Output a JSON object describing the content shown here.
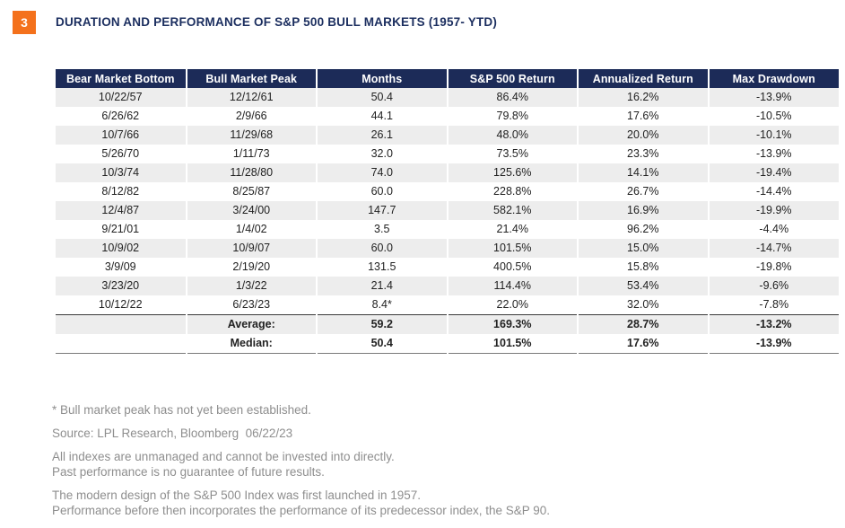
{
  "page": {
    "figure_number": "3"
  },
  "colors": {
    "accent_orange": "#F4711C",
    "header_navy": "#1C2B58",
    "title_navy": "#1B2E5F",
    "row_stripe": "#EDEDED",
    "footnote_gray": "#8E8E8E"
  },
  "chart_data": {
    "type": "table",
    "title": "DURATION AND PERFORMANCE OF S&P 500 BULL MARKETS (1957- YTD)",
    "columns": [
      "Bear Market Bottom",
      "Bull Market Peak",
      "Months",
      "S&P 500 Return",
      "Annualized Return",
      "Max Drawdown"
    ],
    "rows": [
      [
        "10/22/57",
        "12/12/61",
        "50.4",
        "86.4%",
        "16.2%",
        "-13.9%"
      ],
      [
        "6/26/62",
        "2/9/66",
        "44.1",
        "79.8%",
        "17.6%",
        "-10.5%"
      ],
      [
        "10/7/66",
        "11/29/68",
        "26.1",
        "48.0%",
        "20.0%",
        "-10.1%"
      ],
      [
        "5/26/70",
        "1/11/73",
        "32.0",
        "73.5%",
        "23.3%",
        "-13.9%"
      ],
      [
        "10/3/74",
        "11/28/80",
        "74.0",
        "125.6%",
        "14.1%",
        "-19.4%"
      ],
      [
        "8/12/82",
        "8/25/87",
        "60.0",
        "228.8%",
        "26.7%",
        "-14.4%"
      ],
      [
        "12/4/87",
        "3/24/00",
        "147.7",
        "582.1%",
        "16.9%",
        "-19.9%"
      ],
      [
        "9/21/01",
        "1/4/02",
        "3.5",
        "21.4%",
        "96.2%",
        "-4.4%"
      ],
      [
        "10/9/02",
        "10/9/07",
        "60.0",
        "101.5%",
        "15.0%",
        "-14.7%"
      ],
      [
        "3/9/09",
        "2/19/20",
        "131.5",
        "400.5%",
        "15.8%",
        "-19.8%"
      ],
      [
        "3/23/20",
        "1/3/22",
        "21.4",
        "114.4%",
        "53.4%",
        "-9.6%"
      ],
      [
        "10/12/22",
        "6/23/23",
        "8.4*",
        "22.0%",
        "32.0%",
        "-7.8%"
      ]
    ],
    "summary_rows": [
      [
        "",
        "Average:",
        "59.2",
        "169.3%",
        "28.7%",
        "-13.2%"
      ],
      [
        "",
        "Median:",
        "50.4",
        "101.5%",
        "17.6%",
        "-13.9%"
      ]
    ]
  },
  "footnotes": {
    "star": "* Bull market peak has not yet been established.",
    "source": "Source: LPL Research, Bloomberg  06/22/23",
    "disclaimer_lines": [
      "All indexes are unmanaged and cannot be invested into directly.",
      "Past performance is no guarantee of future results."
    ],
    "history_lines": [
      "The modern design of the S&P 500 Index was first launched in 1957.",
      "Performance before then incorporates the performance of its predecessor index, the S&P 90."
    ]
  }
}
